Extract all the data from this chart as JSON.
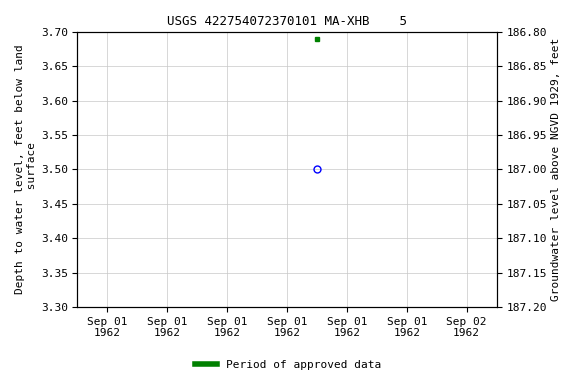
{
  "title": "USGS 422754072370101 MA-XHB    5",
  "ylabel_left": "Depth to water level, feet below land\n surface",
  "ylabel_right": "Groundwater level above NGVD 1929, feet",
  "ylim_left_top": 3.3,
  "ylim_left_bottom": 3.7,
  "ylim_right_top": 187.2,
  "ylim_right_bottom": 186.8,
  "yticks_left": [
    3.3,
    3.35,
    3.4,
    3.45,
    3.5,
    3.55,
    3.6,
    3.65,
    3.7
  ],
  "yticks_right": [
    187.2,
    187.15,
    187.1,
    187.05,
    187.0,
    186.95,
    186.9,
    186.85,
    186.8
  ],
  "xtick_positions": [
    0,
    1,
    2,
    3,
    4,
    5,
    6
  ],
  "xtick_labels": [
    "Sep 01\n1962",
    "Sep 01\n1962",
    "Sep 01\n1962",
    "Sep 01\n1962",
    "Sep 01\n1962",
    "Sep 01\n1962",
    "Sep 02\n1962"
  ],
  "blue_point_x": 3.5,
  "blue_point_y": 3.5,
  "blue_point_color": "#0000ff",
  "green_point_x": 3.5,
  "green_point_y": 3.69,
  "green_point_color": "#008000",
  "grid_color": "#c8c8c8",
  "background_color": "#ffffff",
  "legend_label": "Period of approved data",
  "legend_color": "#008000",
  "title_fontsize": 9,
  "axis_label_fontsize": 8,
  "tick_fontsize": 8
}
